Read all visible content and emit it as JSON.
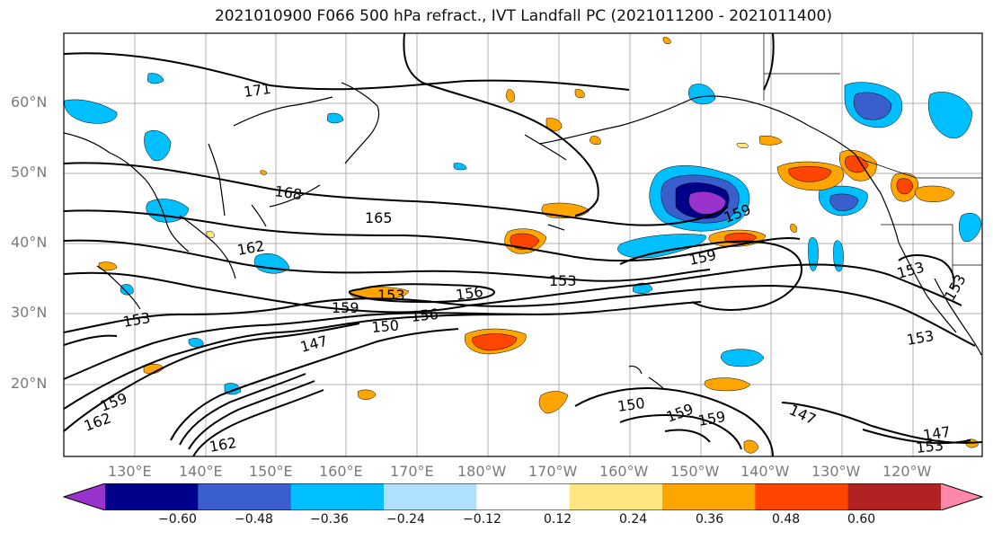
{
  "title": "2021010900 F066 500 hPa refract., IVT Landfall PC (2021011200 - 2021011400)",
  "lat_labels": [
    "60°N",
    "50°N",
    "40°N",
    "30°N",
    "20°N"
  ],
  "lon_labels": [
    "130°E",
    "140°E",
    "150°E",
    "160°E",
    "170°E",
    "180°W",
    "170°W",
    "160°W",
    "150°W",
    "140°W",
    "130°W",
    "120°W"
  ],
  "contour_labels": [
    "171",
    "168",
    "165",
    "162",
    "159",
    "159",
    "159",
    "159",
    "156",
    "156",
    "153",
    "153",
    "153",
    "153",
    "153",
    "153",
    "150",
    "150",
    "147",
    "147",
    "147",
    "159",
    "162",
    "162",
    "159",
    "153"
  ],
  "colorbar": {
    "ticks": [
      "−0.60",
      "−0.48",
      "−0.36",
      "−0.24",
      "−0.12",
      "0.12",
      "0.24",
      "0.36",
      "0.48",
      "0.60"
    ],
    "colors": [
      "#9933cc",
      "#00008b",
      "#3a5fcd",
      "#00bfff",
      "#b0e0ff",
      "#ffffff",
      "#ffe680",
      "#ffa500",
      "#ff4500",
      "#b22222",
      "#ff88aa"
    ]
  }
}
